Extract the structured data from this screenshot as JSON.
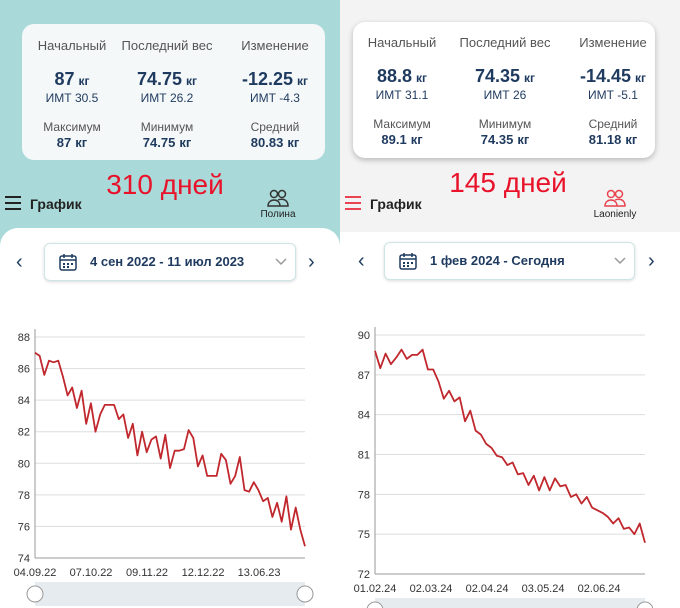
{
  "panels": [
    {
      "stats": {
        "top": [
          {
            "label": "Начальный",
            "value": 87,
            "unit": "кг",
            "bmi": "ИМТ 30.5"
          },
          {
            "label": "Последний вес",
            "value": 74.75,
            "unit": "кг",
            "bmi": "ИМТ 26.2"
          },
          {
            "label": "Изменение",
            "value": -12.25,
            "unit": "кг",
            "bmi": "ИМТ -4.3"
          }
        ],
        "bottom": [
          {
            "label": "Максимум",
            "value": 87,
            "unit": "кг"
          },
          {
            "label": "Минимум",
            "value": 74.75,
            "unit": "кг"
          },
          {
            "label": "Средний",
            "value": 80.83,
            "unit": "кг"
          }
        ]
      },
      "days": "310 дней",
      "menu": "График",
      "user": "Полина",
      "range": "4 сен 2022 - 11 июл 2023",
      "chart": {
        "type": "line",
        "color": "#c0282e",
        "ylim": [
          74,
          88
        ],
        "yticks": [
          74,
          76,
          78,
          80,
          82,
          84,
          86,
          88
        ],
        "x_labels": [
          "04.09.22",
          "07.10.22",
          "09.11.22",
          "12.12.22",
          "13.06.23"
        ],
        "values": [
          87,
          86.8,
          85.6,
          86.5,
          86.4,
          86.5,
          85.5,
          84.3,
          84.8,
          83.5,
          84.6,
          82.5,
          83.8,
          82,
          83.1,
          83.7,
          83.7,
          83.7,
          82.8,
          83.1,
          81.6,
          82.5,
          80.5,
          82,
          80.7,
          81.5,
          81.7,
          80.3,
          81.8,
          79.7,
          80.8,
          80.8,
          80.9,
          82.1,
          81.6,
          79.8,
          80.5,
          79.2,
          79.2,
          79.2,
          80.6,
          80.2,
          78.7,
          79.2,
          80.4,
          78.3,
          78.2,
          78.8,
          78.3,
          77.6,
          77.8,
          76.6,
          77.5,
          76.3,
          77.9,
          75.8,
          77.2,
          75.8,
          74.75
        ]
      }
    },
    {
      "stats": {
        "top": [
          {
            "label": "Начальный",
            "value": 88.8,
            "unit": "кг",
            "bmi": "ИМТ 31.1"
          },
          {
            "label": "Последний вес",
            "value": 74.35,
            "unit": "кг",
            "bmi": "ИМТ 26"
          },
          {
            "label": "Изменение",
            "value": -14.45,
            "unit": "кг",
            "bmi": "ИМТ -5.1"
          }
        ],
        "bottom": [
          {
            "label": "Максимум",
            "value": 89.1,
            "unit": "кг"
          },
          {
            "label": "Минимум",
            "value": 74.35,
            "unit": "кг"
          },
          {
            "label": "Средний",
            "value": 81.18,
            "unit": "кг"
          }
        ]
      },
      "days": "145 дней",
      "menu": "График",
      "user": "Laonienly",
      "range": "1 фев 2024 - Сегодня",
      "chart": {
        "type": "line",
        "color": "#c0282e",
        "ylim": [
          72,
          90
        ],
        "yticks": [
          72,
          75,
          78,
          81,
          84,
          87,
          90
        ],
        "x_labels": [
          "01.02.24",
          "02.03.24",
          "02.04.24",
          "03.05.24",
          "02.06.24"
        ],
        "values": [
          88.8,
          87.5,
          88.6,
          87.8,
          88.3,
          88.9,
          88.2,
          88.5,
          88.5,
          88.9,
          87.4,
          87.4,
          86.5,
          85.2,
          85.8,
          85,
          85.3,
          83.5,
          84.3,
          82.8,
          82.5,
          81.8,
          81.5,
          80.9,
          80.8,
          80.2,
          80.4,
          79.5,
          79.6,
          78.7,
          79.4,
          78.3,
          79.3,
          78.3,
          79.2,
          78.6,
          78.7,
          77.8,
          78,
          77.3,
          77.8,
          77,
          76.8,
          76.6,
          76.3,
          75.8,
          76.2,
          75.4,
          75.5,
          75,
          75.8,
          74.35
        ]
      }
    }
  ]
}
